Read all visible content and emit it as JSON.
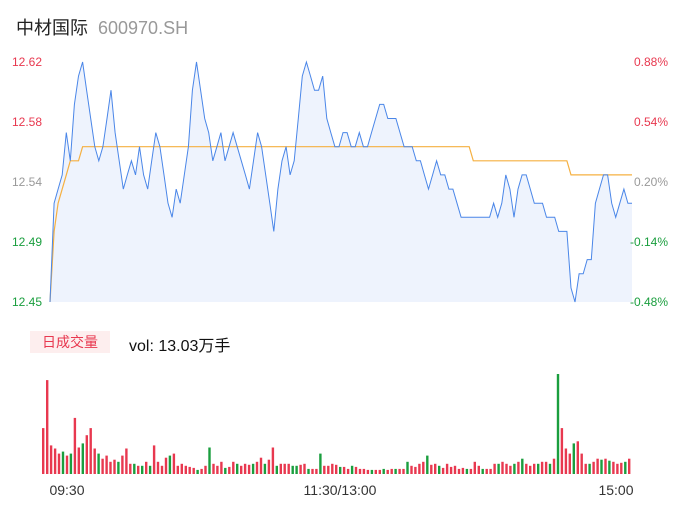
{
  "header": {
    "name": "中材国际",
    "code": "600970.SH"
  },
  "volume_header": {
    "badge": "日成交量",
    "label": "vol: 13.03万手"
  },
  "colors": {
    "price_line": "#4a86e8",
    "avg_line": "#f5b041",
    "area_fill": "#eef3fd",
    "up": "#e8384f",
    "down": "#1a9e3e",
    "neutral_text": "#999999"
  },
  "chart_data": [
    {
      "type": "line",
      "title": "",
      "ylim": [
        12.45,
        12.62
      ],
      "y_ticks_left": [
        "12.62",
        "12.58",
        "12.54",
        "12.49",
        "12.45"
      ],
      "y_ticks_right": [
        "0.88%",
        "0.54%",
        "0.20%",
        "-0.14%",
        "-0.48%"
      ],
      "x_ticks": [
        "09:30",
        "11:30/13:00",
        "15:00"
      ],
      "series": [
        {
          "role": "price",
          "values": [
            12.45,
            12.52,
            12.53,
            12.54,
            12.57,
            12.55,
            12.59,
            12.61,
            12.62,
            12.6,
            12.58,
            12.56,
            12.55,
            12.56,
            12.58,
            12.6,
            12.57,
            12.55,
            12.53,
            12.54,
            12.55,
            12.54,
            12.56,
            12.54,
            12.53,
            12.55,
            12.57,
            12.56,
            12.54,
            12.52,
            12.51,
            12.53,
            12.52,
            12.54,
            12.56,
            12.6,
            12.62,
            12.6,
            12.58,
            12.57,
            12.55,
            12.56,
            12.57,
            12.55,
            12.56,
            12.57,
            12.56,
            12.55,
            12.54,
            12.53,
            12.55,
            12.57,
            12.56,
            12.54,
            12.52,
            12.5,
            12.53,
            12.55,
            12.56,
            12.54,
            12.55,
            12.58,
            12.61,
            12.62,
            12.61,
            12.6,
            12.6,
            12.61,
            12.58,
            12.57,
            12.56,
            12.56,
            12.57,
            12.57,
            12.56,
            12.56,
            12.57,
            12.56,
            12.56,
            12.57,
            12.58,
            12.59,
            12.59,
            12.58,
            12.58,
            12.58,
            12.57,
            12.56,
            12.56,
            12.56,
            12.55,
            12.55,
            12.54,
            12.53,
            12.54,
            12.55,
            12.54,
            12.54,
            12.53,
            12.53,
            12.52,
            12.51,
            12.51,
            12.51,
            12.51,
            12.51,
            12.51,
            12.51,
            12.51,
            12.52,
            12.51,
            12.52,
            12.54,
            12.53,
            12.51,
            12.53,
            12.54,
            12.54,
            12.53,
            12.52,
            12.52,
            12.52,
            12.51,
            12.51,
            12.51,
            12.5,
            12.5,
            12.5,
            12.46,
            12.45,
            12.47,
            12.47,
            12.48,
            12.48,
            12.52,
            12.53,
            12.54,
            12.54,
            12.52,
            12.51,
            12.52,
            12.53,
            12.52,
            12.52
          ]
        },
        {
          "role": "average",
          "values": [
            12.45,
            12.5,
            12.52,
            12.53,
            12.54,
            12.55,
            12.55,
            12.55,
            12.56,
            12.56,
            12.56,
            12.56,
            12.56,
            12.56,
            12.56,
            12.56,
            12.56,
            12.56,
            12.56,
            12.56,
            12.56,
            12.56,
            12.56,
            12.56,
            12.56,
            12.56,
            12.56,
            12.56,
            12.56,
            12.56,
            12.56,
            12.56,
            12.56,
            12.56,
            12.56,
            12.56,
            12.56,
            12.56,
            12.56,
            12.56,
            12.56,
            12.56,
            12.56,
            12.56,
            12.56,
            12.56,
            12.56,
            12.56,
            12.56,
            12.56,
            12.56,
            12.56,
            12.56,
            12.56,
            12.56,
            12.56,
            12.56,
            12.56,
            12.56,
            12.56,
            12.56,
            12.56,
            12.56,
            12.56,
            12.56,
            12.56,
            12.56,
            12.56,
            12.56,
            12.56,
            12.56,
            12.56,
            12.56,
            12.56,
            12.56,
            12.56,
            12.56,
            12.56,
            12.56,
            12.56,
            12.56,
            12.56,
            12.56,
            12.56,
            12.56,
            12.56,
            12.56,
            12.56,
            12.56,
            12.56,
            12.56,
            12.56,
            12.56,
            12.56,
            12.56,
            12.56,
            12.56,
            12.56,
            12.56,
            12.56,
            12.56,
            12.56,
            12.56,
            12.56,
            12.55,
            12.55,
            12.55,
            12.55,
            12.55,
            12.55,
            12.55,
            12.55,
            12.55,
            12.55,
            12.55,
            12.55,
            12.55,
            12.55,
            12.55,
            12.55,
            12.55,
            12.55,
            12.55,
            12.55,
            12.55,
            12.55,
            12.55,
            12.55,
            12.54,
            12.54,
            12.54,
            12.54,
            12.54,
            12.54,
            12.54,
            12.54,
            12.54,
            12.54,
            12.54,
            12.54,
            12.54,
            12.54,
            12.54,
            12.54
          ]
        }
      ]
    },
    {
      "type": "bar",
      "title": "",
      "unit": "万手",
      "values": [
        0.45,
        0.92,
        0.28,
        0.25,
        0.2,
        0.22,
        0.18,
        0.2,
        0.55,
        0.26,
        0.3,
        0.38,
        0.45,
        0.25,
        0.2,
        0.15,
        0.18,
        0.12,
        0.14,
        0.12,
        0.18,
        0.25,
        0.1,
        0.1,
        0.08,
        0.08,
        0.12,
        0.08,
        0.28,
        0.12,
        0.08,
        0.16,
        0.18,
        0.2,
        0.08,
        0.1,
        0.08,
        0.07,
        0.06,
        0.04,
        0.05,
        0.08,
        0.26,
        0.1,
        0.08,
        0.12,
        0.06,
        0.07,
        0.12,
        0.1,
        0.08,
        0.1,
        0.09,
        0.1,
        0.12,
        0.16,
        0.1,
        0.14,
        0.26,
        0.08,
        0.1,
        0.1,
        0.1,
        0.08,
        0.08,
        0.09,
        0.1,
        0.05,
        0.05,
        0.05,
        0.2,
        0.08,
        0.08,
        0.1,
        0.09,
        0.07,
        0.07,
        0.05,
        0.08,
        0.07,
        0.05,
        0.05,
        0.04,
        0.04,
        0.04,
        0.04,
        0.05,
        0.04,
        0.05,
        0.05,
        0.05,
        0.05,
        0.12,
        0.08,
        0.07,
        0.1,
        0.12,
        0.18,
        0.09,
        0.1,
        0.08,
        0.06,
        0.1,
        0.07,
        0.08,
        0.05,
        0.06,
        0.05,
        0.05,
        0.12,
        0.08,
        0.05,
        0.05,
        0.05,
        0.1,
        0.1,
        0.12,
        0.1,
        0.08,
        0.1,
        0.12,
        0.15,
        0.1,
        0.08,
        0.1,
        0.1,
        0.12,
        0.12,
        0.1,
        0.15,
        0.98,
        0.45,
        0.25,
        0.2,
        0.3,
        0.32,
        0.2,
        0.1,
        0.1,
        0.12,
        0.15,
        0.14,
        0.15,
        0.13,
        0.12,
        0.1,
        0.11,
        0.12,
        0.15
      ],
      "directions": [
        "u",
        "u",
        "u",
        "u",
        "u",
        "d",
        "u",
        "d",
        "u",
        "u",
        "d",
        "u",
        "u",
        "u",
        "d",
        "u",
        "u",
        "u",
        "u",
        "d",
        "u",
        "u",
        "u",
        "d",
        "u",
        "d",
        "u",
        "d",
        "u",
        "u",
        "u",
        "u",
        "d",
        "u",
        "u",
        "u",
        "u",
        "u",
        "u",
        "d",
        "u",
        "u",
        "d",
        "u",
        "u",
        "u",
        "d",
        "u",
        "u",
        "d",
        "u",
        "u",
        "u",
        "d",
        "u",
        "u",
        "d",
        "u",
        "u",
        "d",
        "u",
        "u",
        "u",
        "d",
        "d",
        "u",
        "u",
        "d",
        "u",
        "u",
        "d",
        "u",
        "u",
        "u",
        "u",
        "d",
        "u",
        "u",
        "d",
        "u",
        "u",
        "u",
        "u",
        "d",
        "u",
        "u",
        "d",
        "u",
        "u",
        "d",
        "u",
        "u",
        "d",
        "u",
        "u",
        "u",
        "u",
        "d",
        "u",
        "u",
        "d",
        "u",
        "u",
        "u",
        "u",
        "u",
        "u",
        "d",
        "u",
        "u",
        "u",
        "d",
        "u",
        "u",
        "u",
        "d",
        "u",
        "u",
        "u",
        "d",
        "u",
        "d",
        "u",
        "u",
        "u",
        "d",
        "u",
        "u",
        "d",
        "u",
        "d",
        "u",
        "u",
        "u",
        "d",
        "u",
        "u",
        "u",
        "d",
        "u",
        "u",
        "d",
        "u",
        "d",
        "u",
        "u",
        "u",
        "d",
        "u",
        "u"
      ]
    }
  ]
}
